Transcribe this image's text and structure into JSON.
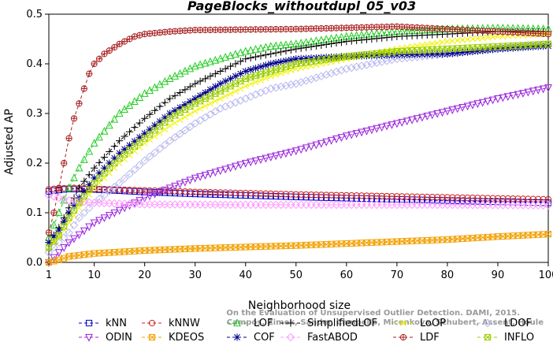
{
  "chart_data": {
    "type": "line",
    "title": "PageBlocks_withoutdupl_05_v03",
    "xlabel": "Neighborhood size",
    "ylabel": "Adjusted AP",
    "xlim": [
      1,
      100
    ],
    "ylim": [
      0,
      0.5
    ],
    "xticks": [
      1,
      10,
      20,
      30,
      40,
      50,
      60,
      70,
      80,
      90,
      100
    ],
    "yticks": [
      0.0,
      0.1,
      0.2,
      0.3,
      0.4,
      0.5
    ],
    "grid": false,
    "legend_position": "bottom",
    "watermark": [
      "Campos, Zimek, Sander, Campello, Micenkova, Schubert, Assent, Houle",
      "On the Evaluation of Unsupervised Outlier Detection. DAMI, 2015."
    ],
    "series": [
      {
        "name": "kNN",
        "color": "#0000cc",
        "marker": "square",
        "dash": "4,3",
        "points": [
          [
            1,
            0.143
          ],
          [
            2,
            0.145
          ],
          [
            5,
            0.148
          ],
          [
            10,
            0.147
          ],
          [
            20,
            0.142
          ],
          [
            30,
            0.138
          ],
          [
            50,
            0.132
          ],
          [
            70,
            0.127
          ],
          [
            90,
            0.122
          ],
          [
            100,
            0.12
          ]
        ]
      },
      {
        "name": "kNNW",
        "color": "#cc2222",
        "marker": "circle",
        "dash": "4,3",
        "points": [
          [
            1,
            0.147
          ],
          [
            3,
            0.149
          ],
          [
            6,
            0.15
          ],
          [
            10,
            0.148
          ],
          [
            20,
            0.145
          ],
          [
            30,
            0.142
          ],
          [
            50,
            0.137
          ],
          [
            70,
            0.133
          ],
          [
            90,
            0.129
          ],
          [
            100,
            0.127
          ]
        ]
      },
      {
        "name": "LOF",
        "color": "#22cc22",
        "marker": "triangle",
        "dash": "4,3",
        "points": [
          [
            1,
            0.05
          ],
          [
            3,
            0.1
          ],
          [
            5,
            0.15
          ],
          [
            7,
            0.19
          ],
          [
            10,
            0.24
          ],
          [
            15,
            0.3
          ],
          [
            20,
            0.34
          ],
          [
            25,
            0.37
          ],
          [
            30,
            0.395
          ],
          [
            35,
            0.41
          ],
          [
            40,
            0.425
          ],
          [
            45,
            0.435
          ],
          [
            50,
            0.44
          ],
          [
            60,
            0.455
          ],
          [
            70,
            0.465
          ],
          [
            80,
            0.47
          ],
          [
            90,
            0.472
          ],
          [
            100,
            0.47
          ]
        ]
      },
      {
        "name": "SimplifiedLOF",
        "color": "#000000",
        "marker": "plus",
        "dash": "4,3",
        "points": [
          [
            1,
            0.04
          ],
          [
            3,
            0.07
          ],
          [
            5,
            0.11
          ],
          [
            7,
            0.15
          ],
          [
            10,
            0.19
          ],
          [
            15,
            0.245
          ],
          [
            20,
            0.29
          ],
          [
            25,
            0.33
          ],
          [
            30,
            0.36
          ],
          [
            35,
            0.385
          ],
          [
            40,
            0.41
          ],
          [
            45,
            0.42
          ],
          [
            50,
            0.43
          ],
          [
            60,
            0.445
          ],
          [
            70,
            0.455
          ],
          [
            80,
            0.46
          ],
          [
            90,
            0.465
          ],
          [
            100,
            0.465
          ]
        ]
      },
      {
        "name": "LoOP",
        "color": "#f2f200",
        "marker": "x",
        "dash": "4,3",
        "points": [
          [
            1,
            0.03
          ],
          [
            3,
            0.05
          ],
          [
            5,
            0.08
          ],
          [
            7,
            0.11
          ],
          [
            10,
            0.15
          ],
          [
            15,
            0.2
          ],
          [
            20,
            0.24
          ],
          [
            25,
            0.275
          ],
          [
            30,
            0.305
          ],
          [
            35,
            0.33
          ],
          [
            40,
            0.355
          ],
          [
            45,
            0.375
          ],
          [
            50,
            0.39
          ],
          [
            60,
            0.41
          ],
          [
            70,
            0.43
          ],
          [
            80,
            0.445
          ],
          [
            90,
            0.455
          ],
          [
            100,
            0.46
          ]
        ]
      },
      {
        "name": "LDOF",
        "color": "#b8b8ee",
        "marker": "diamond",
        "dash": "4,3",
        "points": [
          [
            1,
            0.02
          ],
          [
            3,
            0.04
          ],
          [
            5,
            0.06
          ],
          [
            7,
            0.09
          ],
          [
            10,
            0.12
          ],
          [
            15,
            0.16
          ],
          [
            20,
            0.205
          ],
          [
            25,
            0.245
          ],
          [
            30,
            0.28
          ],
          [
            35,
            0.31
          ],
          [
            40,
            0.33
          ],
          [
            45,
            0.35
          ],
          [
            50,
            0.36
          ],
          [
            60,
            0.39
          ],
          [
            70,
            0.41
          ],
          [
            80,
            0.42
          ],
          [
            90,
            0.43
          ],
          [
            100,
            0.44
          ]
        ]
      },
      {
        "name": "ODIN",
        "color": "#9922dd",
        "marker": "invtriangle",
        "dash": "4,3",
        "points": [
          [
            1,
            0.0
          ],
          [
            3,
            0.02
          ],
          [
            5,
            0.04
          ],
          [
            10,
            0.08
          ],
          [
            20,
            0.13
          ],
          [
            30,
            0.17
          ],
          [
            40,
            0.2
          ],
          [
            50,
            0.225
          ],
          [
            60,
            0.255
          ],
          [
            70,
            0.28
          ],
          [
            80,
            0.305
          ],
          [
            90,
            0.33
          ],
          [
            100,
            0.352
          ]
        ]
      },
      {
        "name": "KDEOS",
        "color": "#f2a000",
        "marker": "sqx",
        "dash": "4,3",
        "points": [
          [
            1,
            0.0
          ],
          [
            3,
            0.005
          ],
          [
            5,
            0.012
          ],
          [
            10,
            0.018
          ],
          [
            20,
            0.024
          ],
          [
            30,
            0.028
          ],
          [
            40,
            0.031
          ],
          [
            50,
            0.034
          ],
          [
            60,
            0.038
          ],
          [
            70,
            0.042
          ],
          [
            80,
            0.046
          ],
          [
            90,
            0.052
          ],
          [
            100,
            0.057
          ]
        ]
      },
      {
        "name": "COF",
        "color": "#000088",
        "marker": "star",
        "dash": "4,3",
        "points": [
          [
            1,
            0.04
          ],
          [
            3,
            0.065
          ],
          [
            5,
            0.1
          ],
          [
            7,
            0.13
          ],
          [
            10,
            0.17
          ],
          [
            15,
            0.22
          ],
          [
            20,
            0.26
          ],
          [
            25,
            0.3
          ],
          [
            30,
            0.33
          ],
          [
            35,
            0.36
          ],
          [
            40,
            0.385
          ],
          [
            45,
            0.4
          ],
          [
            50,
            0.41
          ],
          [
            60,
            0.415
          ],
          [
            70,
            0.418
          ],
          [
            80,
            0.42
          ],
          [
            90,
            0.43
          ],
          [
            100,
            0.436
          ]
        ]
      },
      {
        "name": "FastABOD",
        "color": "#ff99ff",
        "marker": "diamond",
        "dash": "4,3",
        "points": [
          [
            1,
            0.135
          ],
          [
            3,
            0.13
          ],
          [
            5,
            0.125
          ],
          [
            10,
            0.12
          ],
          [
            20,
            0.117
          ],
          [
            40,
            0.116
          ],
          [
            60,
            0.116
          ],
          [
            80,
            0.116
          ],
          [
            100,
            0.115
          ]
        ]
      },
      {
        "name": "LDF",
        "color": "#aa2222",
        "marker": "circleplus",
        "dash": "4,3",
        "points": [
          [
            1,
            0.06
          ],
          [
            2,
            0.1
          ],
          [
            3,
            0.15
          ],
          [
            4,
            0.2
          ],
          [
            5,
            0.25
          ],
          [
            6,
            0.29
          ],
          [
            7,
            0.32
          ],
          [
            8,
            0.35
          ],
          [
            9,
            0.38
          ],
          [
            10,
            0.4
          ],
          [
            12,
            0.42
          ],
          [
            15,
            0.44
          ],
          [
            18,
            0.455
          ],
          [
            20,
            0.46
          ],
          [
            25,
            0.465
          ],
          [
            30,
            0.468
          ],
          [
            50,
            0.47
          ],
          [
            70,
            0.475
          ],
          [
            80,
            0.47
          ],
          [
            90,
            0.465
          ],
          [
            100,
            0.46
          ]
        ]
      },
      {
        "name": "INFLO",
        "color": "#99cc00",
        "marker": "sqx",
        "dash": "4,3",
        "points": [
          [
            1,
            0.03
          ],
          [
            3,
            0.055
          ],
          [
            5,
            0.09
          ],
          [
            7,
            0.12
          ],
          [
            10,
            0.16
          ],
          [
            15,
            0.21
          ],
          [
            20,
            0.25
          ],
          [
            25,
            0.29
          ],
          [
            30,
            0.32
          ],
          [
            35,
            0.345
          ],
          [
            40,
            0.37
          ],
          [
            45,
            0.385
          ],
          [
            50,
            0.4
          ],
          [
            60,
            0.415
          ],
          [
            70,
            0.425
          ],
          [
            80,
            0.43
          ],
          [
            90,
            0.435
          ],
          [
            100,
            0.44
          ]
        ]
      }
    ]
  }
}
